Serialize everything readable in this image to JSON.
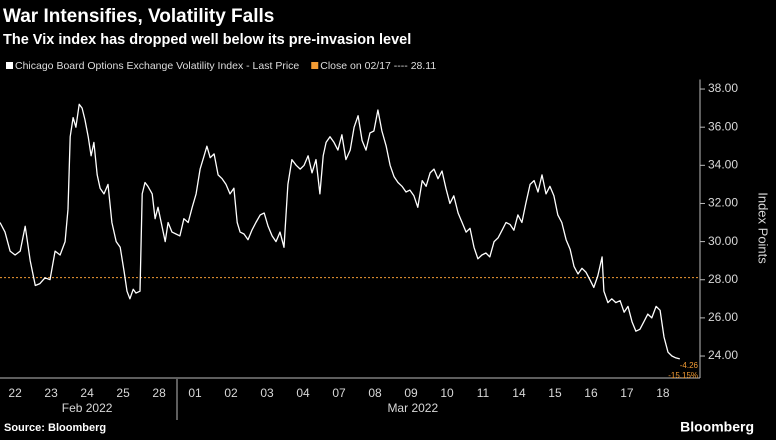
{
  "chart_data": {
    "type": "line",
    "title": "War Intensifies, Volatility Falls",
    "subtitle": "The Vix index has dropped well below its pre-invasion level",
    "source": "Source: Bloomberg",
    "brand": "Bloomberg",
    "y_label": "Index Points",
    "series": [
      {
        "name": "Chicago Board Options Exchange Volatility Index - Last Price",
        "color": "#ffffff",
        "x": [
          0.08,
          0.22,
          0.36,
          0.5,
          0.64,
          0.78,
          0.92,
          1.06,
          1.19,
          1.33,
          1.47,
          1.61,
          1.75,
          1.89,
          1.97,
          2.03,
          2.11,
          2.19,
          2.28,
          2.36,
          2.44,
          2.53,
          2.61,
          2.69,
          2.78,
          2.86,
          2.97,
          3.08,
          3.19,
          3.31,
          3.42,
          3.53,
          3.61,
          3.69,
          3.78,
          3.86,
          3.97,
          4.03,
          4.11,
          4.19,
          4.31,
          4.39,
          4.47,
          4.56,
          4.67,
          4.75,
          4.86,
          4.97,
          5.08,
          5.19,
          5.31,
          5.42,
          5.53,
          5.64,
          5.75,
          5.83,
          5.92,
          6.03,
          6.14,
          6.25,
          6.36,
          6.47,
          6.58,
          6.67,
          6.75,
          6.86,
          6.97,
          7.08,
          7.19,
          7.31,
          7.42,
          7.53,
          7.64,
          7.75,
          7.86,
          7.97,
          8.08,
          8.19,
          8.31,
          8.42,
          8.53,
          8.64,
          8.75,
          8.86,
          8.97,
          9.06,
          9.14,
          9.25,
          9.36,
          9.47,
          9.58,
          9.69,
          9.81,
          9.92,
          10.03,
          10.14,
          10.25,
          10.36,
          10.47,
          10.58,
          10.69,
          10.81,
          10.92,
          11.03,
          11.14,
          11.25,
          11.36,
          11.47,
          11.58,
          11.69,
          11.81,
          11.92,
          12.03,
          12.14,
          12.25,
          12.36,
          12.47,
          12.58,
          12.69,
          12.81,
          12.92,
          13.03,
          13.14,
          13.25,
          13.36,
          13.47,
          13.58,
          13.69,
          13.81,
          13.92,
          14.03,
          14.14,
          14.25,
          14.36,
          14.47,
          14.58,
          14.69,
          14.81,
          14.92,
          15.03,
          15.14,
          15.25,
          15.36,
          15.47,
          15.58,
          15.69,
          15.81,
          15.92,
          16.03,
          16.14,
          16.25,
          16.36,
          16.47,
          16.58,
          16.69,
          16.81,
          16.86,
          16.97,
          17.08,
          17.19,
          17.31,
          17.42,
          17.53,
          17.64,
          17.75,
          17.86,
          17.97,
          18.08,
          18.19,
          18.31,
          18.42,
          18.53,
          18.64,
          18.75,
          18.86,
          18.97
        ],
        "values": [
          31.0,
          30.5,
          29.5,
          29.3,
          29.5,
          30.8,
          29.0,
          27.7,
          27.8,
          28.1,
          28.0,
          29.5,
          29.3,
          30.0,
          31.7,
          35.5,
          36.5,
          36.0,
          37.2,
          37.0,
          36.4,
          35.5,
          34.5,
          35.2,
          33.5,
          32.8,
          32.5,
          33.0,
          31.0,
          30.0,
          29.7,
          28.4,
          27.4,
          27.0,
          27.5,
          27.3,
          27.4,
          32.5,
          33.1,
          32.9,
          32.5,
          31.2,
          31.8,
          31.0,
          30.0,
          31.0,
          30.5,
          30.4,
          30.3,
          31.2,
          31.0,
          31.8,
          32.5,
          33.8,
          34.5,
          35.0,
          34.4,
          34.6,
          33.5,
          33.3,
          33.0,
          32.5,
          32.8,
          31.0,
          30.5,
          30.4,
          30.1,
          30.6,
          31.0,
          31.4,
          31.5,
          30.8,
          30.3,
          30.0,
          30.5,
          29.7,
          33.0,
          34.3,
          34.0,
          33.8,
          34.0,
          34.5,
          33.6,
          34.3,
          32.5,
          34.5,
          35.2,
          35.5,
          35.2,
          34.8,
          35.6,
          34.3,
          34.8,
          36.0,
          36.6,
          35.3,
          34.8,
          35.7,
          35.8,
          36.9,
          35.8,
          35.0,
          34.0,
          33.4,
          33.1,
          32.9,
          32.6,
          32.7,
          32.4,
          31.8,
          33.2,
          32.9,
          33.6,
          33.8,
          33.3,
          33.7,
          32.8,
          32.0,
          32.4,
          31.5,
          31.0,
          30.5,
          30.7,
          29.7,
          29.1,
          29.3,
          29.4,
          29.2,
          30.0,
          30.2,
          30.6,
          31.0,
          30.9,
          30.6,
          31.4,
          31.0,
          32.0,
          33.0,
          33.2,
          32.6,
          33.5,
          32.5,
          32.9,
          32.4,
          31.4,
          31.0,
          30.1,
          29.6,
          28.7,
          28.3,
          28.6,
          28.4,
          28.0,
          27.6,
          28.2,
          29.2,
          27.4,
          26.8,
          27.0,
          26.8,
          26.9,
          26.3,
          26.6,
          25.8,
          25.3,
          25.4,
          25.8,
          26.2,
          26.0,
          26.6,
          26.4,
          25.0,
          24.2,
          24.0,
          23.9,
          23.85
        ]
      }
    ],
    "reference_line": {
      "label": "Close on 02/17 ---- 28.11",
      "value": 28.11,
      "color": "#f39c34"
    },
    "annotations": [
      "-4.26",
      "-15.15%"
    ],
    "xlim": [
      0.08,
      19.53
    ],
    "xticks": [
      {
        "value": 0.5,
        "label": "22"
      },
      {
        "value": 1.5,
        "label": "23"
      },
      {
        "value": 2.5,
        "label": "24"
      },
      {
        "value": 3.5,
        "label": "25"
      },
      {
        "value": 4.5,
        "label": "28"
      },
      {
        "value": 5.5,
        "label": "01"
      },
      {
        "value": 6.5,
        "label": "02"
      },
      {
        "value": 7.5,
        "label": "03"
      },
      {
        "value": 8.5,
        "label": "04"
      },
      {
        "value": 9.5,
        "label": "07"
      },
      {
        "value": 10.5,
        "label": "08"
      },
      {
        "value": 11.5,
        "label": "09"
      },
      {
        "value": 12.5,
        "label": "10"
      },
      {
        "value": 13.5,
        "label": "11"
      },
      {
        "value": 14.5,
        "label": "14"
      },
      {
        "value": 15.5,
        "label": "15"
      },
      {
        "value": 16.5,
        "label": "16"
      },
      {
        "value": 17.5,
        "label": "17"
      },
      {
        "value": 18.5,
        "label": "18"
      }
    ],
    "month_labels": [
      {
        "value": 2.5,
        "label": "Feb 2022"
      },
      {
        "value": 11.55,
        "label": "Mar 2022"
      }
    ],
    "ylim": [
      23,
      38.5
    ],
    "yticks": [
      {
        "value": 24,
        "label": "24.00"
      },
      {
        "value": 26,
        "label": "26.00"
      },
      {
        "value": 28,
        "label": "28.00"
      },
      {
        "value": 30,
        "label": "30.00"
      },
      {
        "value": 32,
        "label": "32.00"
      },
      {
        "value": 34,
        "label": "34.00"
      },
      {
        "value": 36,
        "label": "36.00"
      },
      {
        "value": 38,
        "label": "38.00"
      }
    ]
  }
}
